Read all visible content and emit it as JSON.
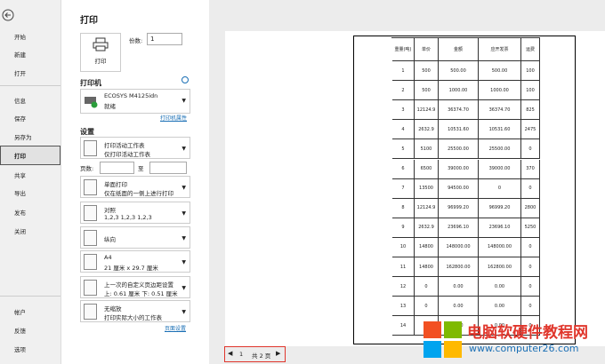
{
  "sidebar": {
    "items": [
      "开始",
      "新建",
      "打开",
      "信息",
      "保存",
      "另存为",
      "打印",
      "共享",
      "导出",
      "发布",
      "关闭"
    ],
    "bottom_items": [
      "帐户",
      "反馈",
      "选项"
    ]
  },
  "panel": {
    "title": "打印",
    "print_button": "打印",
    "copies_label": "份数:",
    "copies_value": "1",
    "printer_heading": "打印机",
    "printer_name": "ECOSYS M4125idn",
    "printer_status": "就绪",
    "printer_properties": "打印机属性",
    "settings_heading": "设置",
    "settings": [
      [
        "打印活动工作表",
        "仅打印活动工作表"
      ],
      [
        "单面打印",
        "仅在纸面的一侧上进行打印"
      ],
      [
        "对照",
        "1,2,3    1,2,3    1,2,3"
      ],
      [
        "纵向",
        ""
      ],
      [
        "A4",
        "21 厘米 x 29.7 厘米"
      ],
      [
        "上一次的自定义页边距设置",
        "上: 0.61 厘米 下: 0.51 厘米"
      ],
      [
        "无缩放",
        "打印实际大小的工作表"
      ]
    ],
    "pages_label": "页数:",
    "pages_to": "至",
    "page_setup": "页面设置"
  },
  "preview": {
    "table": {
      "headers": [
        "重量(吨)",
        "单价",
        "金额",
        "应开发票",
        "运费"
      ],
      "rows": [
        [
          "1",
          "500",
          "500.00",
          "500.00",
          "100"
        ],
        [
          "2",
          "500",
          "1000.00",
          "1000.00",
          "100"
        ],
        [
          "3",
          "12124.9",
          "36374.70",
          "36374.70",
          "825"
        ],
        [
          "4",
          "2632.9",
          "10531.60",
          "10531.60",
          "2475"
        ],
        [
          "5",
          "5100",
          "25500.00",
          "25500.00",
          "0"
        ],
        [
          "6",
          "6500",
          "39000.00",
          "39000.00",
          "370"
        ],
        [
          "7",
          "13500",
          "94500.00",
          "0",
          "0"
        ],
        [
          "8",
          "12124.9",
          "96999.20",
          "96999.20",
          "2800"
        ],
        [
          "9",
          "2632.9",
          "23696.10",
          "23696.10",
          "5250"
        ],
        [
          "10",
          "14800",
          "148000.00",
          "148000.00",
          "0"
        ],
        [
          "11",
          "14800",
          "162800.00",
          "162800.00",
          "0"
        ],
        [
          "12",
          "0",
          "0.00",
          "0.00",
          "0"
        ],
        [
          "13",
          "0",
          "0.00",
          "0.00",
          "0"
        ],
        [
          "14",
          "0",
          "0.00",
          "0.00",
          "0"
        ]
      ]
    },
    "nav": {
      "current": "1",
      "total": "共 2 页"
    }
  },
  "watermark": {
    "title": "电脑软硬件教程网",
    "url": "www.computer26.com"
  }
}
